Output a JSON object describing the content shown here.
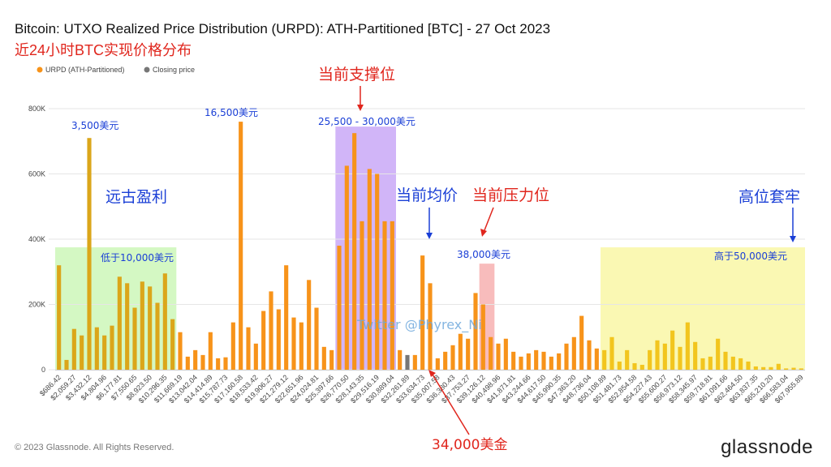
{
  "header": {
    "title": "Bitcoin: UTXO Realized Price Distribution (URPD): ATH-Partitioned [BTC] - 27 Oct 2023",
    "subtitle": "近24小时BTC实现价格分布"
  },
  "footer": {
    "copyright": "© 2023 Glassnode. All Rights Reserved.",
    "brand": "glassnode"
  },
  "colors": {
    "bar": "#f7931a",
    "bar_low": "#dba61a",
    "bar_high": "#f2c51e",
    "closing": "#777777",
    "annotation_blue": "#1a3fd6",
    "annotation_red": "#e0261d",
    "zone_green": "#ccf7b8",
    "zone_purple": "#c9a8f7",
    "zone_pink": "#f7b0b0",
    "zone_yellow": "#f9f7a6"
  },
  "chart_data": {
    "type": "bar",
    "legend": {
      "placement": "top-left",
      "entries": [
        {
          "label": "URPD (ATH-Partitioned)",
          "color": "#f7931a"
        },
        {
          "label": "Closing price",
          "color": "#777777"
        }
      ]
    },
    "ylim": [
      0,
      800000
    ],
    "yticks": [
      {
        "value": 0,
        "label": "0"
      },
      {
        "value": 200000,
        "label": "200K"
      },
      {
        "value": 400000,
        "label": "400K"
      },
      {
        "value": 600000,
        "label": "600K"
      },
      {
        "value": 800000,
        "label": "800K"
      }
    ],
    "grid": true,
    "closing_index": 46,
    "bars": [
      320000,
      30000,
      125000,
      105000,
      710000,
      130000,
      105000,
      135000,
      285000,
      265000,
      190000,
      270000,
      255000,
      205000,
      295000,
      155000,
      115000,
      40000,
      60000,
      45000,
      115000,
      35000,
      38000,
      145000,
      760000,
      130000,
      80000,
      180000,
      240000,
      185000,
      320000,
      160000,
      145000,
      275000,
      190000,
      70000,
      60000,
      380000,
      625000,
      725000,
      455000,
      615000,
      600000,
      455000,
      455000,
      60000,
      45000,
      45000,
      350000,
      265000,
      35000,
      55000,
      75000,
      110000,
      95000,
      235000,
      200000,
      100000,
      80000,
      95000,
      55000,
      40000,
      50000,
      60000,
      55000,
      40000,
      50000,
      80000,
      100000,
      165000,
      90000,
      65000,
      60000,
      100000,
      25000,
      60000,
      20000,
      15000,
      60000,
      90000,
      80000,
      120000,
      70000,
      145000,
      85000,
      35000,
      40000,
      95000,
      55000,
      40000,
      35000,
      25000,
      10000,
      8000,
      8000,
      18000,
      4000,
      6000,
      4000
    ],
    "tick_labels": [
      "$686.42",
      "$2,059.27",
      "$3,432.12",
      "$4,804.96",
      "$6,177.81",
      "$7,550.65",
      "$8,923.50",
      "$10,296.35",
      "$11,669.19",
      "$13,042.04",
      "$14,414.89",
      "$15,787.73",
      "$17,160.58",
      "$18,533.42",
      "$19,906.27",
      "$21,279.12",
      "$22,651.96",
      "$24,024.81",
      "$25,397.66",
      "$26,770.50",
      "$28,143.35",
      "$29,516.19",
      "$30,889.04",
      "$32,261.89",
      "$33,634.73",
      "$35,007.58",
      "$36,380.43",
      "$37,753.27",
      "$39,126.12",
      "$40,498.96",
      "$41,871.81",
      "$43,244.66",
      "$44,617.50",
      "$45,990.35",
      "$47,363.20",
      "$48,736.04",
      "$50,108.89",
      "$51,481.73",
      "$52,854.58",
      "$54,227.43",
      "$55,600.27",
      "$56,973.12",
      "$58,345.97",
      "$59,718.81",
      "$61,091.66",
      "$62,464.50",
      "$63,837.35",
      "$65,210.20",
      "$66,583.04",
      "$67,955.89"
    ],
    "zones": [
      {
        "name": "green",
        "from": 0,
        "to": 15,
        "top": 375000,
        "color": "#ccf7b8"
      },
      {
        "name": "purple",
        "from": 37,
        "to": 44,
        "top": 745000,
        "color": "#c9a8f7"
      },
      {
        "name": "pink",
        "from": 56,
        "to": 57,
        "top": 325000,
        "color": "#f7b0b0"
      },
      {
        "name": "yellow",
        "from": 72,
        "to": 98,
        "top": 375000,
        "color": "#f9f7a6"
      }
    ],
    "annotations": {
      "label_3500": "3,500美元",
      "label_16500": "16,500美元",
      "label_25500": "25,500 - 30,000美元",
      "label_38000": "38,000美元",
      "label_below10k": "低于10,000美元",
      "label_above50k": "高于50,000美元",
      "label_ancient": "远古盈利",
      "label_support": "当前支撑位",
      "label_avg": "当前均价",
      "label_resistance": "当前压力位",
      "label_top": "高位套牢",
      "label_34000": "34,000美金",
      "watermark": "Twitter @Phyrex_Ni"
    }
  }
}
